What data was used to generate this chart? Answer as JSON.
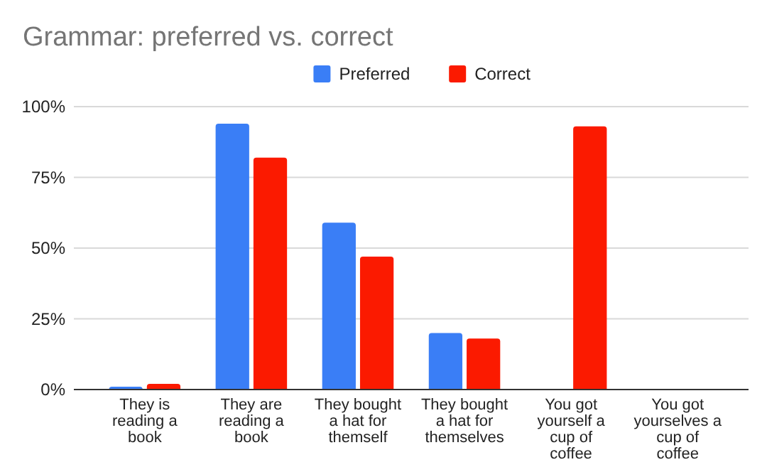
{
  "chart_data": {
    "type": "bar",
    "title": "Grammar: preferred vs. correct",
    "categories": [
      "They is reading a book",
      "They are reading a book",
      "They bought a hat for themself",
      "They bought a hat for themselves",
      "You got yourself a cup of coffee",
      "You got yourselves a cup of coffee"
    ],
    "series": [
      {
        "name": "Preferred",
        "color": "#3a7ef6",
        "values": [
          1,
          94,
          59,
          20,
          0,
          0
        ]
      },
      {
        "name": "Correct",
        "color": "#fb1a00",
        "values": [
          2,
          82,
          47,
          18,
          93,
          0
        ]
      }
    ],
    "ylim": [
      0,
      100
    ],
    "yticks": [
      {
        "value": 0,
        "label": "0%"
      },
      {
        "value": 25,
        "label": "25%"
      },
      {
        "value": 50,
        "label": "50%"
      },
      {
        "value": 75,
        "label": "75%"
      },
      {
        "value": 100,
        "label": "100%"
      }
    ],
    "grid": "y",
    "legend": "top"
  }
}
